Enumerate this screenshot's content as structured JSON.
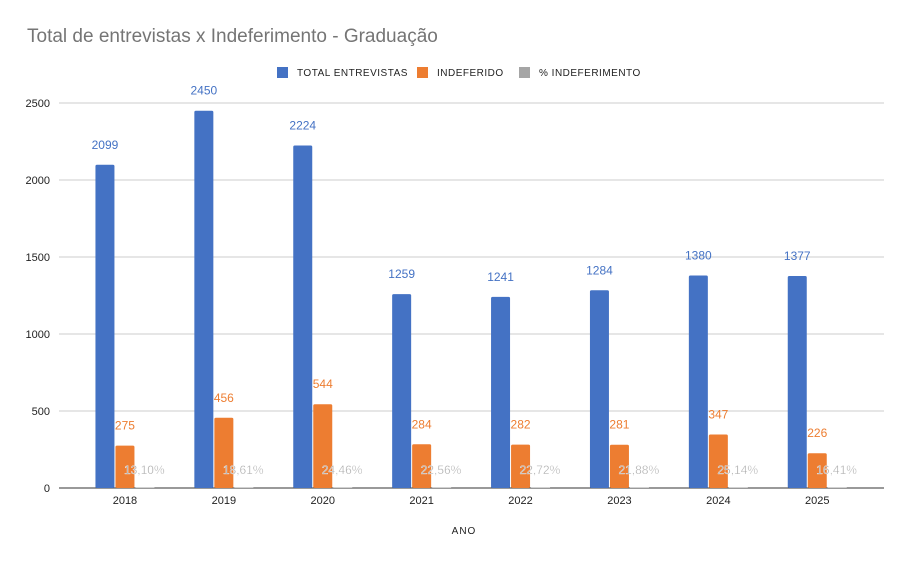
{
  "chart_data": {
    "type": "bar",
    "title": "Total de entrevistas x Indeferimento - Graduação",
    "xlabel": "ANO",
    "ylabel": "",
    "ylim": [
      0,
      2500
    ],
    "yticks": [
      "0",
      "500",
      "1000",
      "1500",
      "2000",
      "2500"
    ],
    "grid": true,
    "legend_position": "top",
    "categories": [
      "2018",
      "2019",
      "2020",
      "2021",
      "2022",
      "2023",
      "2024",
      "2025"
    ],
    "series": [
      {
        "name": "TOTAL ENTREVISTAS",
        "color": "#4472c4",
        "values": [
          2099,
          2450,
          2224,
          1259,
          1241,
          1284,
          1380,
          1377
        ],
        "labels": [
          "2099",
          "2450",
          "2224",
          "1259",
          "1241",
          "1284",
          "1380",
          "1377"
        ]
      },
      {
        "name": "INDEFERIDO",
        "color": "#ed7d31",
        "values": [
          275,
          456,
          544,
          284,
          282,
          281,
          347,
          226
        ],
        "labels": [
          "275",
          "456",
          "544",
          "284",
          "282",
          "281",
          "347",
          "226"
        ]
      },
      {
        "name": "% INDEFERIMENTO",
        "color": "#a5a5a5",
        "values": [
          0.131,
          0.1861,
          0.2446,
          0.2256,
          0.2272,
          0.2188,
          0.2514,
          0.1641
        ],
        "labels": [
          "13,10%",
          "18,61%",
          "24,46%",
          "22,56%",
          "22,72%",
          "21,88%",
          "25,14%",
          "16,41%"
        ]
      }
    ]
  }
}
